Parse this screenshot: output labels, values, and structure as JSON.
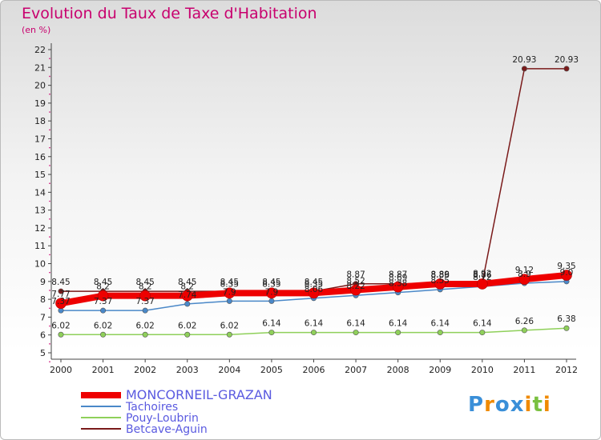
{
  "chart_data": {
    "type": "line",
    "title": "Evolution du Taux de Taxe d'Habitation",
    "subtitle": "(en %)",
    "xlabel": "",
    "ylabel": "",
    "x": [
      "2000",
      "2001",
      "2002",
      "2003",
      "2004",
      "2005",
      "2006",
      "2007",
      "2008",
      "2009",
      "2010",
      "2011",
      "2012"
    ],
    "yticks": [
      5,
      6,
      7,
      8,
      9,
      10,
      11,
      12,
      13,
      14,
      15,
      16,
      17,
      18,
      19,
      20,
      21,
      22
    ],
    "ylim": [
      5,
      22
    ],
    "grid": false,
    "legend_position": "bottom-left",
    "series": [
      {
        "name": "MONCORNEIL-GRAZAN",
        "color": "#ee0000",
        "values": [
          7.77,
          8.2,
          8.2,
          8.2,
          8.35,
          8.35,
          8.35,
          8.52,
          8.69,
          8.86,
          8.86,
          9.12,
          9.35
        ],
        "labels": [
          "7.77",
          "8.2",
          "8.2",
          "8.2",
          "8.35",
          "8.35",
          "8.35",
          "8.52",
          "8.69",
          "8.86",
          "8.86",
          "9.12",
          "9.35"
        ]
      },
      {
        "name": "Tachoires",
        "color": "#4a88c8",
        "values": [
          7.37,
          7.37,
          7.37,
          7.74,
          7.9,
          7.9,
          8.06,
          8.22,
          8.38,
          8.55,
          8.72,
          8.9,
          9.0
        ],
        "labels": [
          "7.37",
          "7.37",
          "7.37",
          "7.74",
          "7.9",
          "7.9",
          "8.06",
          "8.22",
          "8.38",
          "8.55",
          "8.72",
          "8.9",
          "9.0"
        ]
      },
      {
        "name": "Pouy-Loubrin",
        "color": "#8fd05a",
        "values": [
          6.02,
          6.02,
          6.02,
          6.02,
          6.02,
          6.14,
          6.14,
          6.14,
          6.14,
          6.14,
          6.14,
          6.26,
          6.38
        ],
        "labels": [
          "6.02",
          "6.02",
          "6.02",
          "6.02",
          "6.02",
          "6.14",
          "6.14",
          "6.14",
          "6.14",
          "6.14",
          "6.14",
          "6.26",
          "6.38"
        ]
      },
      {
        "name": "Betcave-Aguin",
        "color": "#7a1a1a",
        "values": [
          8.45,
          8.45,
          8.45,
          8.45,
          8.45,
          8.45,
          8.45,
          8.87,
          8.87,
          8.89,
          8.92,
          20.93,
          20.93
        ],
        "labels": [
          "8.45",
          "8.45",
          "8.45",
          "8.45",
          "8.45",
          "8.45",
          "8.45",
          "8.87",
          "8.87",
          "8.89",
          "8.92",
          "20.93",
          "20.93"
        ]
      }
    ]
  },
  "logo": {
    "text": "Proxiti",
    "letters": [
      "P",
      "r",
      "o",
      "x",
      "i",
      "t",
      "i"
    ],
    "colors": [
      "#3a8fd8",
      "#f08a00",
      "#3a8fd8",
      "#3a8fd8",
      "#f08a00",
      "#7ac040",
      "#f08a00"
    ]
  }
}
